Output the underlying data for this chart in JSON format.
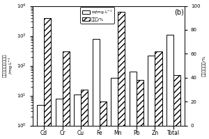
{
  "categories": [
    "Cd",
    "Cr",
    "Cu",
    "Fe",
    "Mn",
    "Pb",
    "Zn",
    "Total"
  ],
  "concentration": [
    5,
    8,
    11,
    800,
    40,
    65,
    220,
    1100
  ],
  "leaching_pct": [
    90,
    62,
    30,
    20,
    95,
    38,
    62,
    42
  ],
  "ylabel_left": "淋滤液中重金属浓度 /mg·L$^{-1}$",
  "ylabel_right": "重金属溶出率/%",
  "title": "(b)",
  "legend_conc": "浓度/mg·L$^{-1}$",
  "legend_rate": "溶出率/%",
  "ylim_left": [
    1,
    10000
  ],
  "ylim_right": [
    0,
    100
  ],
  "bar_color_conc": "#ffffff",
  "bar_color_rate": "#ffffff",
  "bar_edgecolor": "#000000",
  "hatch_rate": "////",
  "background": "#ffffff"
}
